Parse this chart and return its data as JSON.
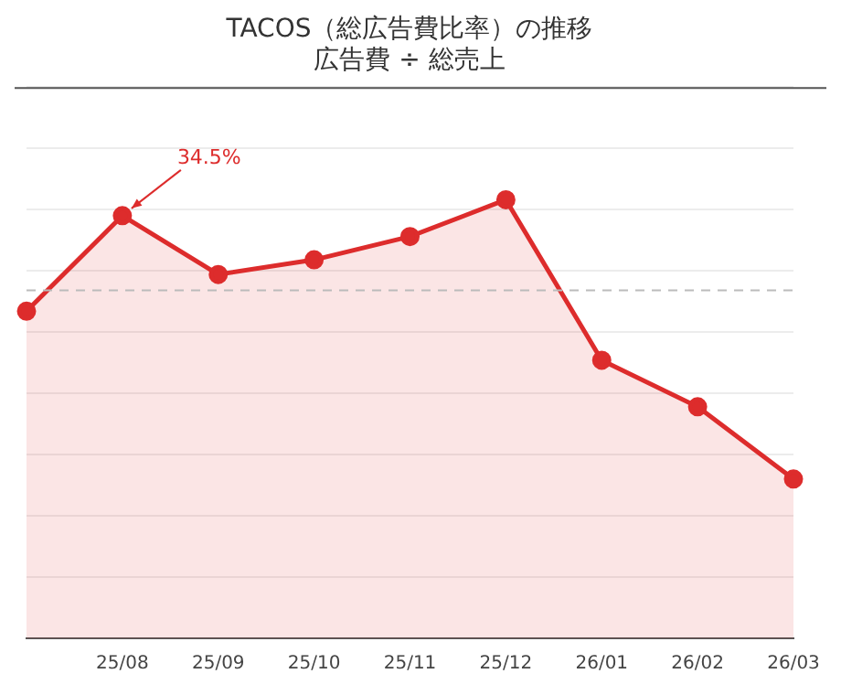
{
  "chart_data": {
    "type": "area",
    "title": "TACOS（総広告費比率）の推移",
    "subtitle": "広告費 ÷ 総売上",
    "categories": [
      null,
      "25/08",
      "25/09",
      "25/10",
      "25/11",
      "25/12",
      "26/01",
      "26/02",
      "26/03"
    ],
    "series": [
      {
        "color": "#dd2c2c",
        "values": [
          26.7,
          34.5,
          29.7,
          30.9,
          32.8,
          35.8,
          22.7,
          18.9,
          13.0
        ],
        "value_labels": [
          null,
          "34.5%",
          null,
          null,
          null,
          null,
          null,
          null,
          null
        ]
      }
    ],
    "ylim": [
      0,
      45
    ],
    "yticks": [
      {
        "value": 0,
        "label": null
      },
      {
        "value": 5,
        "label": null
      },
      {
        "value": 10,
        "label": null
      },
      {
        "value": 15,
        "label": null
      },
      {
        "value": 20,
        "label": null
      },
      {
        "value": 25,
        "label": null
      },
      {
        "value": 30,
        "label": null
      },
      {
        "value": 35,
        "label": null
      },
      {
        "value": 40,
        "label": null
      },
      {
        "value": 45,
        "label": null
      }
    ],
    "tick_labels": "x",
    "ref_lines": [
      {
        "axis": "y",
        "value": 28.4,
        "color": "#bbbbbb",
        "line_style": "dashed"
      }
    ],
    "grid": "y",
    "marker": "circle",
    "legend": false
  }
}
